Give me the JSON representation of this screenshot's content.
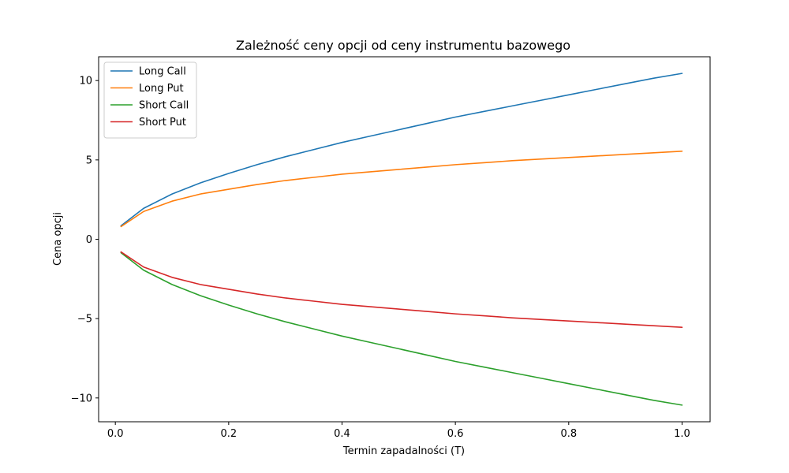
{
  "chart_data": {
    "type": "line",
    "title": "Zależność ceny opcji od ceny instrumentu bazowego",
    "xlabel": "Termin zapadalności (T)",
    "ylabel": "Cena opcji",
    "xlim": [
      -0.0295,
      1.0495
    ],
    "ylim": [
      -11.5,
      11.5
    ],
    "x_ticks": [
      0.0,
      0.2,
      0.4,
      0.6,
      0.8,
      1.0
    ],
    "x_tick_labels": [
      "0.0",
      "0.2",
      "0.4",
      "0.6",
      "0.8",
      "1.0"
    ],
    "y_ticks": [
      -10,
      -5,
      0,
      5,
      10
    ],
    "y_tick_labels": [
      "−10",
      "−5",
      "0",
      "5",
      "10"
    ],
    "grid": false,
    "legend_position": "top-left",
    "x": [
      0.01,
      0.05,
      0.1,
      0.15,
      0.2,
      0.25,
      0.3,
      0.35,
      0.4,
      0.45,
      0.5,
      0.55,
      0.6,
      0.65,
      0.7,
      0.75,
      0.8,
      0.85,
      0.9,
      0.95,
      1.0
    ],
    "series": [
      {
        "name": "Long Call",
        "color": "#1f77b4",
        "values": [
          0.85,
          1.95,
          2.85,
          3.55,
          4.15,
          4.7,
          5.2,
          5.65,
          6.1,
          6.5,
          6.9,
          7.3,
          7.7,
          8.05,
          8.4,
          8.75,
          9.1,
          9.45,
          9.8,
          10.15,
          10.45
        ]
      },
      {
        "name": "Long Put",
        "color": "#ff7f0e",
        "values": [
          0.8,
          1.75,
          2.4,
          2.85,
          3.15,
          3.45,
          3.7,
          3.9,
          4.1,
          4.25,
          4.4,
          4.55,
          4.7,
          4.82,
          4.95,
          5.05,
          5.15,
          5.25,
          5.35,
          5.45,
          5.55
        ]
      },
      {
        "name": "Short Call",
        "color": "#2ca02c",
        "values": [
          -0.85,
          -1.95,
          -2.85,
          -3.55,
          -4.15,
          -4.7,
          -5.2,
          -5.65,
          -6.1,
          -6.5,
          -6.9,
          -7.3,
          -7.7,
          -8.05,
          -8.4,
          -8.75,
          -9.1,
          -9.45,
          -9.8,
          -10.15,
          -10.45
        ]
      },
      {
        "name": "Short Put",
        "color": "#d62728",
        "values": [
          -0.8,
          -1.75,
          -2.4,
          -2.85,
          -3.15,
          -3.45,
          -3.7,
          -3.9,
          -4.1,
          -4.25,
          -4.4,
          -4.55,
          -4.7,
          -4.82,
          -4.95,
          -5.05,
          -5.15,
          -5.25,
          -5.35,
          -5.45,
          -5.55
        ]
      }
    ]
  }
}
